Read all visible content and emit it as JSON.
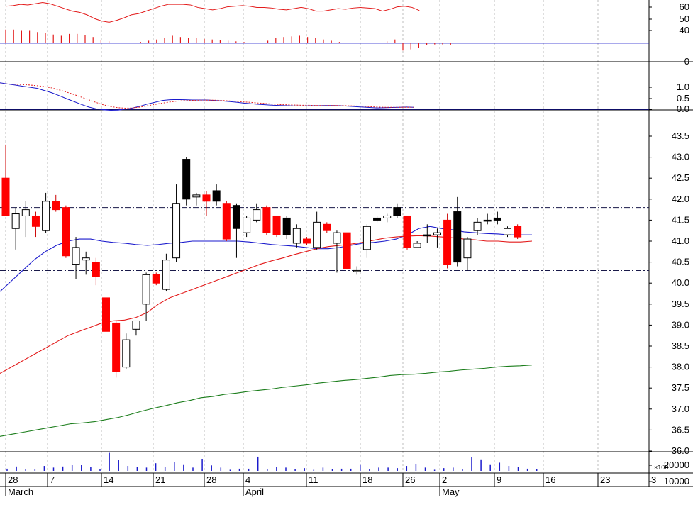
{
  "chart_data": [
    {
      "type": "line",
      "panel": "oscillator",
      "y_ticks": [
        "60",
        "50",
        "40",
        "0"
      ],
      "ylim": [
        -30,
        70
      ],
      "grid": true,
      "colors": {
        "line": "#e31a1a",
        "bars": "#e31a1a"
      },
      "x_index": [
        0,
        1,
        2,
        3,
        4,
        5,
        6,
        7,
        8,
        9,
        10,
        11,
        12,
        13,
        14,
        15,
        16,
        17,
        18,
        19,
        20,
        21,
        22,
        23,
        24,
        25,
        26,
        27,
        28,
        29,
        30,
        31,
        32,
        33,
        34,
        35,
        36,
        37,
        38,
        39,
        40,
        41,
        42,
        43,
        44,
        45,
        46,
        47,
        48,
        49,
        50,
        51,
        52,
        53,
        54,
        55,
        56
      ],
      "line_values": [
        60,
        61,
        63,
        62,
        64,
        66,
        64,
        60,
        56,
        52,
        50,
        46,
        40,
        36,
        34,
        37,
        41,
        46,
        48,
        52,
        56,
        60,
        63,
        63,
        63,
        62,
        58,
        56,
        54,
        56,
        59,
        60,
        61,
        60,
        58,
        58,
        57,
        55,
        54,
        56,
        58,
        56,
        52,
        52,
        54,
        56,
        55,
        57,
        58,
        57,
        56,
        52,
        55,
        59,
        60,
        58,
        53
      ],
      "histogram_values": [
        22,
        22,
        20,
        20,
        18,
        16,
        14,
        12,
        15,
        15,
        13,
        10,
        5,
        3,
        0,
        0,
        0,
        2,
        4,
        6,
        8,
        12,
        10,
        9,
        8,
        7,
        6,
        5,
        4,
        3,
        2,
        0,
        0,
        4,
        8,
        10,
        11,
        12,
        10,
        8,
        6,
        4,
        2,
        0,
        0,
        0,
        0,
        0,
        3,
        6,
        -12,
        -10,
        -8,
        -3,
        -2,
        -2,
        -3
      ]
    },
    {
      "type": "line",
      "panel": "macd",
      "y_ticks": [
        "1.0",
        "0.5",
        "0.0"
      ],
      "ylim": [
        -0.2,
        1.4
      ],
      "grid": true,
      "series": [
        {
          "color": "#1a1acc",
          "style": "solid",
          "values": [
            1.2,
            1.15,
            1.1,
            1.05,
            1.0,
            0.95,
            0.85,
            0.75,
            0.62,
            0.48,
            0.35,
            0.22,
            0.1,
            0.02,
            -0.03,
            -0.05,
            -0.04,
            0.0,
            0.06,
            0.14,
            0.24,
            0.32,
            0.4,
            0.43,
            0.44,
            0.43,
            0.42,
            0.42,
            0.42,
            0.4,
            0.38,
            0.35,
            0.32,
            0.28,
            0.25,
            0.22,
            0.2,
            0.18,
            0.17,
            0.16,
            0.15,
            0.15,
            0.16,
            0.16,
            0.17,
            0.17,
            0.16,
            0.14,
            0.12,
            0.1,
            0.08,
            0.06,
            0.07,
            0.08,
            0.09,
            0.1,
            0.09
          ]
        },
        {
          "color": "#e31a1a",
          "style": "dashed",
          "values": [
            1.15,
            1.15,
            1.14,
            1.12,
            1.1,
            1.07,
            1.03,
            0.97,
            0.88,
            0.78,
            0.67,
            0.55,
            0.43,
            0.31,
            0.2,
            0.12,
            0.07,
            0.05,
            0.06,
            0.1,
            0.16,
            0.22,
            0.28,
            0.33,
            0.37,
            0.39,
            0.4,
            0.41,
            0.41,
            0.41,
            0.4,
            0.38,
            0.36,
            0.33,
            0.31,
            0.28,
            0.26,
            0.23,
            0.21,
            0.2,
            0.19,
            0.18,
            0.18,
            0.17,
            0.17,
            0.17,
            0.17,
            0.16,
            0.15,
            0.14,
            0.12,
            0.1,
            0.09,
            0.09,
            0.09,
            0.09,
            0.09
          ]
        }
      ]
    },
    {
      "type": "candlestick",
      "panel": "price",
      "y_ticks": [
        "43.5",
        "43.0",
        "42.5",
        "42.0",
        "41.5",
        "41.0",
        "40.5",
        "40.0",
        "39.5",
        "39.0",
        "38.5",
        "38.0",
        "37.5",
        "37.0",
        "36.5",
        "36.0"
      ],
      "ylim": [
        35.75,
        43.85
      ],
      "grid": true,
      "reference_lines": [
        41.8,
        40.3
      ],
      "colors": {
        "up_fill": "#ffffff",
        "down_fill": "#ff0000",
        "ma_short": "#1a1acc",
        "ma_mid": "#e31a1a",
        "ma_long": "#1b7d1b"
      },
      "candles": [
        {
          "o": 42.5,
          "h": 43.3,
          "l": 41.6,
          "c": 41.6,
          "f": "red"
        },
        {
          "o": 41.3,
          "h": 41.8,
          "l": 40.8,
          "c": 41.65,
          "f": "white"
        },
        {
          "o": 41.6,
          "h": 41.95,
          "l": 41.1,
          "c": 41.75,
          "f": "white"
        },
        {
          "o": 41.6,
          "h": 41.7,
          "l": 41.1,
          "c": 41.35,
          "f": "red"
        },
        {
          "o": 41.25,
          "h": 42.15,
          "l": 41.2,
          "c": 41.95,
          "f": "white"
        },
        {
          "o": 41.95,
          "h": 42.1,
          "l": 41.7,
          "c": 41.75,
          "f": "red"
        },
        {
          "o": 41.8,
          "h": 41.85,
          "l": 40.6,
          "c": 40.65,
          "f": "red"
        },
        {
          "o": 40.45,
          "h": 41.1,
          "l": 40.1,
          "c": 40.85,
          "f": "white"
        },
        {
          "o": 40.6,
          "h": 40.75,
          "l": 40.2,
          "c": 40.55,
          "f": "white"
        },
        {
          "o": 40.5,
          "h": 40.6,
          "l": 39.95,
          "c": 40.15,
          "f": "red"
        },
        {
          "o": 39.65,
          "h": 39.8,
          "l": 38.05,
          "c": 38.85,
          "f": "red"
        },
        {
          "o": 39.05,
          "h": 39.1,
          "l": 37.75,
          "c": 37.9,
          "f": "red"
        },
        {
          "o": 38.0,
          "h": 38.8,
          "l": 37.95,
          "c": 38.65,
          "f": "white"
        },
        {
          "o": 38.9,
          "h": 39.1,
          "l": 38.75,
          "c": 39.1,
          "f": "white"
        },
        {
          "o": 39.5,
          "h": 40.25,
          "l": 39.1,
          "c": 40.2,
          "f": "white"
        },
        {
          "o": 40.2,
          "h": 40.25,
          "l": 39.95,
          "c": 40.0,
          "f": "red"
        },
        {
          "o": 39.85,
          "h": 40.7,
          "l": 39.8,
          "c": 40.55,
          "f": "white"
        },
        {
          "o": 40.6,
          "h": 42.35,
          "l": 40.5,
          "c": 41.9,
          "f": "white"
        },
        {
          "o": 42.0,
          "h": 43.0,
          "l": 41.85,
          "c": 42.95,
          "f": "black"
        },
        {
          "o": 42.1,
          "h": 42.15,
          "l": 41.85,
          "c": 42.05,
          "f": "white"
        },
        {
          "o": 42.1,
          "h": 42.2,
          "l": 41.6,
          "c": 41.95,
          "f": "red"
        },
        {
          "o": 41.95,
          "h": 42.35,
          "l": 41.85,
          "c": 42.2,
          "f": "black"
        },
        {
          "o": 41.9,
          "h": 41.95,
          "l": 41.0,
          "c": 41.05,
          "f": "red"
        },
        {
          "o": 41.3,
          "h": 41.9,
          "l": 40.6,
          "c": 41.85,
          "f": "black"
        },
        {
          "o": 41.2,
          "h": 41.6,
          "l": 41.1,
          "c": 41.55,
          "f": "white"
        },
        {
          "o": 41.5,
          "h": 41.9,
          "l": 41.45,
          "c": 41.75,
          "f": "white"
        },
        {
          "o": 41.8,
          "h": 41.85,
          "l": 41.15,
          "c": 41.2,
          "f": "red"
        },
        {
          "o": 41.6,
          "h": 41.6,
          "l": 41.1,
          "c": 41.15,
          "f": "red"
        },
        {
          "o": 41.15,
          "h": 41.6,
          "l": 41.05,
          "c": 41.55,
          "f": "black"
        },
        {
          "o": 40.95,
          "h": 41.4,
          "l": 40.85,
          "c": 41.3,
          "f": "white"
        },
        {
          "o": 41.05,
          "h": 41.1,
          "l": 40.9,
          "c": 40.95,
          "f": "red"
        },
        {
          "o": 40.85,
          "h": 41.7,
          "l": 40.8,
          "c": 41.45,
          "f": "white"
        },
        {
          "o": 41.4,
          "h": 41.45,
          "l": 41.2,
          "c": 41.25,
          "f": "red"
        },
        {
          "o": 41.2,
          "h": 41.25,
          "l": 40.25,
          "c": 40.95,
          "f": "white"
        },
        {
          "o": 41.2,
          "h": 41.2,
          "l": 40.35,
          "c": 40.35,
          "f": "red"
        },
        {
          "o": 40.3,
          "h": 40.4,
          "l": 40.2,
          "c": 40.3,
          "f": "white"
        },
        {
          "o": 40.8,
          "h": 41.4,
          "l": 40.6,
          "c": 41.35,
          "f": "white"
        },
        {
          "o": 41.5,
          "h": 41.6,
          "l": 41.45,
          "c": 41.55,
          "f": "black"
        },
        {
          "o": 41.55,
          "h": 41.65,
          "l": 41.45,
          "c": 41.6,
          "f": "white"
        },
        {
          "o": 41.6,
          "h": 41.9,
          "l": 41.55,
          "c": 41.8,
          "f": "black"
        },
        {
          "o": 41.6,
          "h": 41.6,
          "l": 40.8,
          "c": 40.85,
          "f": "red"
        },
        {
          "o": 40.85,
          "h": 41.0,
          "l": 40.85,
          "c": 40.95,
          "f": "white"
        },
        {
          "o": 41.15,
          "h": 41.4,
          "l": 40.95,
          "c": 41.15,
          "f": "black"
        },
        {
          "o": 41.15,
          "h": 41.3,
          "l": 40.85,
          "c": 41.2,
          "f": "white"
        },
        {
          "o": 41.5,
          "h": 41.65,
          "l": 40.35,
          "c": 40.45,
          "f": "red"
        },
        {
          "o": 40.5,
          "h": 42.05,
          "l": 40.4,
          "c": 41.7,
          "f": "black"
        },
        {
          "o": 40.6,
          "h": 41.1,
          "l": 40.3,
          "c": 41.05,
          "f": "white"
        },
        {
          "o": 41.25,
          "h": 41.55,
          "l": 41.15,
          "c": 41.45,
          "f": "white"
        },
        {
          "o": 41.5,
          "h": 41.65,
          "l": 41.4,
          "c": 41.5,
          "f": "black"
        },
        {
          "o": 41.5,
          "h": 41.7,
          "l": 41.4,
          "c": 41.55,
          "f": "black"
        },
        {
          "o": 41.15,
          "h": 41.35,
          "l": 41.1,
          "c": 41.3,
          "f": "white"
        },
        {
          "o": 41.35,
          "h": 41.4,
          "l": 41.05,
          "c": 41.1,
          "f": "red"
        }
      ],
      "series": [
        {
          "color": "#1a1acc",
          "values": [
            39.8,
            40.05,
            40.3,
            40.55,
            40.75,
            40.9,
            41.0,
            41.05,
            41.05,
            41.0,
            40.97,
            40.95,
            40.92,
            40.9,
            40.92,
            40.95,
            40.97,
            41.0,
            41.0,
            41.0,
            41.0,
            41.0,
            40.98,
            40.95,
            40.92,
            40.9,
            40.88,
            40.85,
            40.82,
            40.82,
            40.85,
            40.9,
            40.95,
            40.97,
            41.0,
            41.05,
            41.15,
            41.3,
            41.35,
            41.3,
            41.27,
            41.22,
            41.2,
            41.18,
            41.17,
            41.15,
            41.15,
            41.15
          ]
        },
        {
          "color": "#e31a1a",
          "values": [
            37.85,
            38.0,
            38.15,
            38.3,
            38.45,
            38.6,
            38.75,
            38.85,
            38.95,
            39.05,
            39.1,
            39.12,
            39.18,
            39.3,
            39.5,
            39.65,
            39.75,
            39.85,
            39.95,
            40.05,
            40.15,
            40.25,
            40.35,
            40.45,
            40.53,
            40.6,
            40.68,
            40.75,
            40.82,
            40.87,
            40.9,
            40.93,
            40.97,
            41.02,
            41.07,
            41.1,
            41.12,
            41.13,
            41.12,
            41.1,
            41.08,
            41.05,
            41.03,
            41.0,
            41.0,
            40.98,
            40.98,
            41.0
          ]
        },
        {
          "color": "#1b7d1b",
          "values": [
            36.35,
            36.4,
            36.45,
            36.5,
            36.55,
            36.6,
            36.65,
            36.67,
            36.7,
            36.75,
            36.8,
            36.87,
            36.95,
            37.02,
            37.08,
            37.15,
            37.2,
            37.27,
            37.3,
            37.35,
            37.38,
            37.42,
            37.45,
            37.48,
            37.52,
            37.55,
            37.58,
            37.62,
            37.65,
            37.68,
            37.7,
            37.73,
            37.76,
            37.8,
            37.82,
            37.83,
            37.85,
            37.88,
            37.9,
            37.93,
            37.95,
            37.97,
            38.0,
            38.02,
            38.03,
            38.05
          ]
        }
      ]
    },
    {
      "type": "bar",
      "panel": "volume",
      "y_ticks": [
        "20000",
        "10000"
      ],
      "y_multiplier_label": "×100",
      "ylim": [
        0,
        40000
      ],
      "grid": true,
      "colors": {
        "bars": "#1a1acc"
      },
      "values": [
        4000,
        8000,
        3000,
        3000,
        9000,
        6000,
        8000,
        11000,
        11000,
        7000,
        3000,
        33000,
        20000,
        9000,
        7000,
        6000,
        14000,
        7000,
        16000,
        12000,
        6000,
        22000,
        10000,
        6000,
        2000,
        4000,
        4000,
        26000,
        3000,
        7000,
        6000,
        3000,
        5000,
        2000,
        6000,
        3000,
        4000,
        4000,
        12000,
        3000,
        6000,
        6000,
        5000,
        9000,
        13000,
        6000,
        2000,
        5000,
        6000,
        3000,
        25000,
        21000,
        12000,
        15000,
        9000,
        7000,
        4000,
        3000
      ]
    }
  ],
  "x_axis": {
    "day_labels": [
      "28",
      "7",
      "14",
      "21",
      "28",
      "4",
      "11",
      "18",
      "26",
      "2",
      "9",
      "16",
      "23",
      "3"
    ],
    "month_labels": [
      "March",
      "April",
      "May"
    ]
  }
}
